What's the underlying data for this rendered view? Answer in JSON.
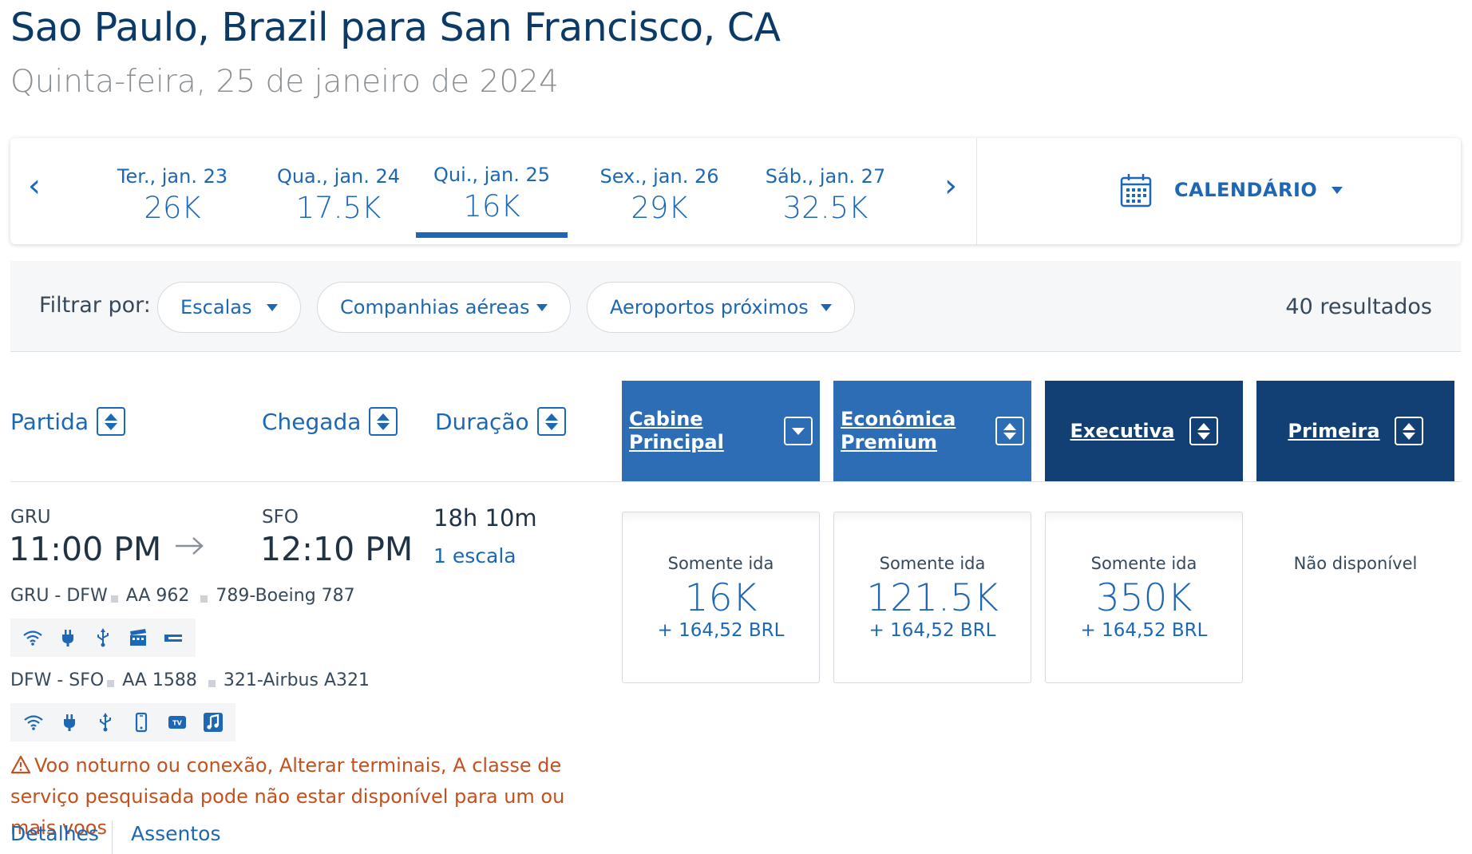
{
  "header": {
    "title": "Sao Paulo, Brazil para San Francisco, CA",
    "subtitle": "Quinta-feira, 25 de janeiro de 2024"
  },
  "dates": [
    {
      "label": "Ter., jan. 23",
      "value": "26K"
    },
    {
      "label": "Qua., jan. 24",
      "value": "17.5K"
    },
    {
      "label": "Qui., jan. 25",
      "value": "16K",
      "active": true
    },
    {
      "label": "Sex., jan. 26",
      "value": "29K"
    },
    {
      "label": "Sáb., jan. 27",
      "value": "32.5K"
    }
  ],
  "calendar_label": "CALENDÁRIO",
  "filter": {
    "label": "Filtrar por:",
    "pills": [
      "Escalas",
      "Companhias aéreas",
      "Aeroportos próximos"
    ],
    "results": "40 resultados"
  },
  "columns": {
    "departure": "Partida",
    "arrival": "Chegada",
    "duration": "Duração"
  },
  "cabins": [
    {
      "label_1": "Cabine",
      "label_2": "Principal"
    },
    {
      "label_1": "Econômica",
      "label_2": "Premium"
    },
    {
      "label_1": "Executiva"
    },
    {
      "label_1": "Primeira"
    }
  ],
  "flight": {
    "origin": "GRU",
    "destination": "SFO",
    "depart_time": "11:00 PM",
    "arrive_time": "12:10 PM",
    "duration": "18h 10m",
    "stops": "1 escala",
    "segments": [
      {
        "route": "GRU - DFW",
        "flight": "AA 962",
        "aircraft": "789-Boeing 787",
        "amenities": [
          "wifi-icon",
          "power-outlet-icon",
          "usb-icon",
          "entertainment-icon",
          "lie-flat-seat-icon"
        ]
      },
      {
        "route": "DFW - SFO",
        "flight": "AA 1588",
        "aircraft": "321-Airbus A321",
        "amenities": [
          "wifi-icon",
          "power-outlet-icon",
          "usb-icon",
          "mobile-device-icon",
          "tv-icon",
          "music-icon"
        ]
      }
    ],
    "warning": "Voo noturno ou conexão, Alterar terminais, A classe de serviço pesquisada pode não estar disponível para um ou mais voos",
    "links": {
      "details": "Detalhes",
      "seats": "Assentos"
    },
    "prices": [
      {
        "type": "Somente ida",
        "miles": "16K",
        "fee": "+ 164,52 BRL"
      },
      {
        "type": "Somente ida",
        "miles": "121.5K",
        "fee": "+ 164,52 BRL"
      },
      {
        "type": "Somente ida",
        "miles": "350K",
        "fee": "+ 164,52 BRL"
      }
    ],
    "unavailable": "Não disponível"
  },
  "colors": {
    "accent": "#1d67b5",
    "cabin_mid": "#2c6db6",
    "cabin_dark": "#123f74",
    "warning": "#c4501e"
  }
}
